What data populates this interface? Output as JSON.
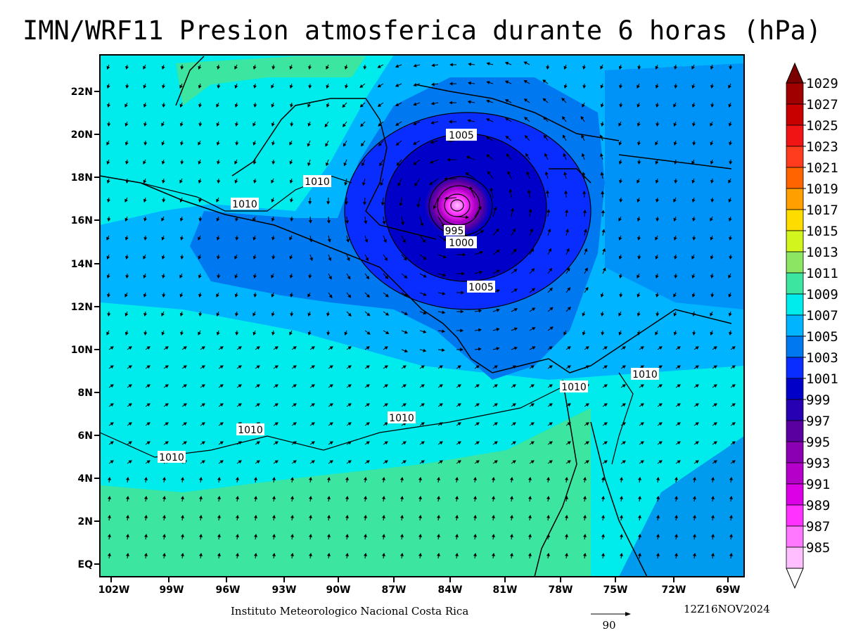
{
  "title": "IMN/WRF11 Presion atmosferica durante 6 horas (hPa)",
  "footer": {
    "institution": "Instituto Meteorologico Nacional Costa Rica",
    "timestamp": "12Z16NOV2024",
    "reference_vector": "90"
  },
  "axes": {
    "x_ticks": [
      "102W",
      "99W",
      "96W",
      "93W",
      "90W",
      "87W",
      "84W",
      "81W",
      "78W",
      "75W",
      "72W",
      "69W"
    ],
    "y_ticks": [
      "22N",
      "20N",
      "18N",
      "16N",
      "14N",
      "12N",
      "10N",
      "8N",
      "6N",
      "4N",
      "2N",
      "EQ"
    ]
  },
  "contour_labels": [
    "1005",
    "1010",
    "1010",
    "995",
    "1000",
    "1005",
    "1010",
    "1010",
    "1010",
    "1010",
    "1010"
  ],
  "colorbar": {
    "labels": [
      "1029",
      "1027",
      "1025",
      "1023",
      "1021",
      "1019",
      "1017",
      "1015",
      "1013",
      "1011",
      "1009",
      "1007",
      "1005",
      "1003",
      "1001",
      "999",
      "997",
      "995",
      "993",
      "991",
      "989",
      "987",
      "985"
    ],
    "colors": [
      "#a00000",
      "#c80000",
      "#f01414",
      "#ff3c1e",
      "#ff6400",
      "#ffa000",
      "#ffdc00",
      "#d2f51e",
      "#8ce664",
      "#3ce6a0",
      "#00ebeb",
      "#00b4ff",
      "#0078f0",
      "#0a2dff",
      "#0000c8",
      "#2800b4",
      "#5a00a0",
      "#8c00b4",
      "#b400c8",
      "#dc00e6",
      "#ff32ff",
      "#ff78ff",
      "#ffbeff"
    ]
  },
  "colors": {
    "ocean_base": "#00b4ff",
    "cyan": "#00ebeb",
    "green": "#3ce6a0",
    "blue": "#0078f0",
    "deep_blue": "#0a2dff",
    "navy": "#0000c8"
  }
}
